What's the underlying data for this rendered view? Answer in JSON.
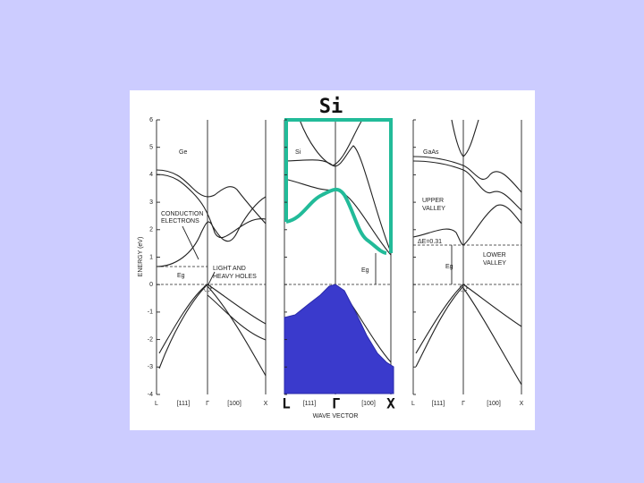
{
  "slide": {
    "heading": "Si",
    "y_axis_label": "ENERGY (eV)",
    "y_ticks": [
      "6",
      "5",
      "4",
      "3",
      "2",
      "1",
      "0",
      "-1",
      "-2",
      "-3",
      "-4"
    ],
    "x_axis_label": "WAVE VECTOR",
    "panels": [
      {
        "label": "Ge",
        "x_labels": [
          "L",
          "[111]",
          "Γ",
          "[100]",
          "X"
        ],
        "annotations": [
          "CONDUCTION",
          "ELECTRONS",
          "Eg",
          "LIGHT AND",
          "HEAVY HOLES"
        ]
      },
      {
        "label": "Si",
        "x_labels": [
          "[111]",
          "[100]"
        ],
        "handwritten_labels": [
          "L",
          "Γ",
          "X"
        ],
        "annotations": [
          "Eg"
        ]
      },
      {
        "label": "GaAs",
        "x_labels": [
          "L",
          "[111]",
          "Γ",
          "[100]",
          "X"
        ],
        "annotations": [
          "UPPER",
          "VALLEY",
          "ΔE=0.31",
          "LOWER",
          "VALLEY",
          "Eg"
        ]
      }
    ]
  }
}
